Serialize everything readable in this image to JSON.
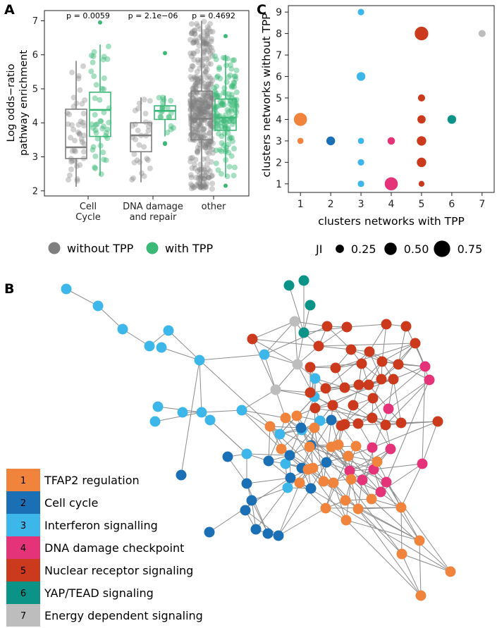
{
  "panels": {
    "a": "A",
    "b": "B",
    "c": "C"
  },
  "colors": {
    "without": "#7f7f7f",
    "with": "#3cb878",
    "clusters": [
      "#f0843c",
      "#1a6fb5",
      "#3db7e9",
      "#e5337a",
      "#cb3a1c",
      "#0a9386",
      "#bdbdbd"
    ]
  },
  "chart_data": [
    {
      "type": "box",
      "id": "A",
      "ylabel_line1": "Log odds−ratio",
      "ylabel_line2": "pathway enrichment",
      "ylim": [
        1.85,
        7.3
      ],
      "yticks": [
        "2",
        "3",
        "4",
        "5",
        "6",
        "7"
      ],
      "categories": [
        {
          "line1": "Cell",
          "line2": "Cycle"
        },
        {
          "line1": "DNA damage",
          "line2": "and repair"
        },
        {
          "line1": "other",
          "line2": ""
        }
      ],
      "pvalues": [
        "p = 0.0059",
        "p = 2.1e−06",
        "p = 0.4692"
      ],
      "series": [
        {
          "name": "without TPP",
          "boxes": [
            {
              "q1": 2.95,
              "median": 3.28,
              "q3": 4.4,
              "lo": 2.12,
              "hi": 5.82,
              "n": 45
            },
            {
              "q1": 3.15,
              "median": 3.63,
              "q3": 4.0,
              "lo": 2.25,
              "hi": 4.75,
              "n": 30
            },
            {
              "q1": 3.5,
              "median": 4.12,
              "q3": 4.93,
              "lo": 2.05,
              "hi": 7.0,
              "n": 400
            }
          ]
        },
        {
          "name": "with TPP",
          "boxes": [
            {
              "q1": 3.6,
              "median": 4.38,
              "q3": 4.9,
              "lo": 2.45,
              "hi": 6.3,
              "n": 45,
              "outliers": [
                6.95
              ]
            },
            {
              "q1": 4.1,
              "median": 4.35,
              "q3": 4.5,
              "lo": 3.6,
              "hi": 4.8,
              "n": 20,
              "outliers": [
                6.05,
                3.4,
                3.38
              ]
            },
            {
              "q1": 3.78,
              "median": 4.15,
              "q3": 4.7,
              "lo": 2.4,
              "hi": 6.0,
              "n": 140,
              "outliers": [
                2.15,
                6.55
              ]
            }
          ]
        }
      ],
      "legend": [
        "without TPP",
        "with TPP"
      ]
    },
    {
      "type": "scatter",
      "id": "C",
      "xlabel": "clusters networks with TPP",
      "ylabel": "clusters networks without TPP",
      "xlim": [
        0.6,
        7.4
      ],
      "ylim": [
        0.6,
        9.3
      ],
      "xticks": [
        "1",
        "2",
        "3",
        "4",
        "5",
        "6",
        "7"
      ],
      "yticks": [
        "1",
        "2",
        "3",
        "4",
        "5",
        "6",
        "7",
        "8",
        "9"
      ],
      "size_legend_title": "JI",
      "size_legend": [
        "0.25",
        "0.50",
        "0.75"
      ],
      "size_legend_values": [
        0.25,
        0.5,
        0.75
      ],
      "points": [
        {
          "x": 1,
          "y": 4,
          "ji": 0.55,
          "cluster": 1
        },
        {
          "x": 1,
          "y": 3,
          "ji": 0.12,
          "cluster": 1
        },
        {
          "x": 2,
          "y": 3,
          "ji": 0.28,
          "cluster": 2
        },
        {
          "x": 3,
          "y": 9,
          "ji": 0.14,
          "cluster": 3
        },
        {
          "x": 3,
          "y": 6,
          "ji": 0.28,
          "cluster": 3
        },
        {
          "x": 3,
          "y": 3,
          "ji": 0.12,
          "cluster": 3
        },
        {
          "x": 3,
          "y": 2,
          "ji": 0.14,
          "cluster": 3
        },
        {
          "x": 3,
          "y": 1,
          "ji": 0.14,
          "cluster": 3
        },
        {
          "x": 4,
          "y": 3,
          "ji": 0.2,
          "cluster": 4
        },
        {
          "x": 4,
          "y": 1,
          "ji": 0.55,
          "cluster": 4
        },
        {
          "x": 5,
          "y": 8,
          "ji": 0.58,
          "cluster": 5
        },
        {
          "x": 5,
          "y": 5,
          "ji": 0.18,
          "cluster": 5
        },
        {
          "x": 5,
          "y": 4,
          "ji": 0.25,
          "cluster": 5
        },
        {
          "x": 5,
          "y": 3,
          "ji": 0.32,
          "cluster": 5
        },
        {
          "x": 5,
          "y": 2,
          "ji": 0.32,
          "cluster": 5
        },
        {
          "x": 5,
          "y": 1,
          "ji": 0.1,
          "cluster": 5
        },
        {
          "x": 6,
          "y": 4,
          "ji": 0.28,
          "cluster": 6
        },
        {
          "x": 7,
          "y": 8,
          "ji": 0.18,
          "cluster": 7
        }
      ]
    }
  ],
  "modules": [
    {
      "num": "1",
      "label": "TFAP2 regulation"
    },
    {
      "num": "2",
      "label": "Cell cycle"
    },
    {
      "num": "3",
      "label": "Interferon signalling"
    },
    {
      "num": "4",
      "label": "DNA damage checkpoint"
    },
    {
      "num": "5",
      "label": "Nuclear receptor signaling"
    },
    {
      "num": "6",
      "label": "YAP/TEAD signaling"
    },
    {
      "num": "7",
      "label": "Energy dependent signaling"
    }
  ]
}
